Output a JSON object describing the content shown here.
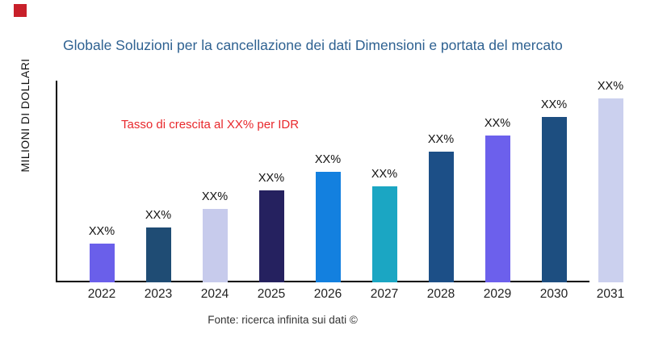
{
  "brand": {
    "accent_square_color": "#C8202A"
  },
  "header": {
    "title_color": "#2E6191"
  },
  "annotation": {
    "growth_note": "Tasso di crescita al XX% per IDR",
    "growth_note_color": "#E8282C"
  },
  "axes": {
    "y_label": "MILIONI DI DOLLARI"
  },
  "footer": {
    "source": "Fonte: ricerca infinita sui dati ©"
  },
  "chart_data": {
    "type": "bar",
    "title": "Globale Soluzioni per la cancellazione dei dati Dimensioni e portata del mercato",
    "xlabel": "",
    "ylabel": "MILIONI DI DOLLARI",
    "categories": [
      "2022",
      "2023",
      "2024",
      "2025",
      "2026",
      "2027",
      "2028",
      "2029",
      "2030",
      "2031"
    ],
    "bar_value_labels": [
      "XX%",
      "XX%",
      "XX%",
      "XX%",
      "XX%",
      "XX%",
      "XX%",
      "XX%",
      "XX%",
      "XX%"
    ],
    "relative_heights_pct_of_max": [
      21,
      30,
      40,
      50,
      60,
      52,
      71,
      80,
      90,
      100
    ],
    "bar_colors": [
      "#6A5FEA",
      "#1F4C74",
      "#C7CBEC",
      "#25215F",
      "#1380DF",
      "#1BA6C3",
      "#1C4F87",
      "#6C60EC",
      "#1D4E80",
      "#CBD0EE"
    ],
    "annotation": "Tasso di crescita al XX% per IDR",
    "source": "Fonte: ricerca infinita sui dati ©",
    "grid": false,
    "legend": false,
    "y_tick_labels_visible": false
  }
}
